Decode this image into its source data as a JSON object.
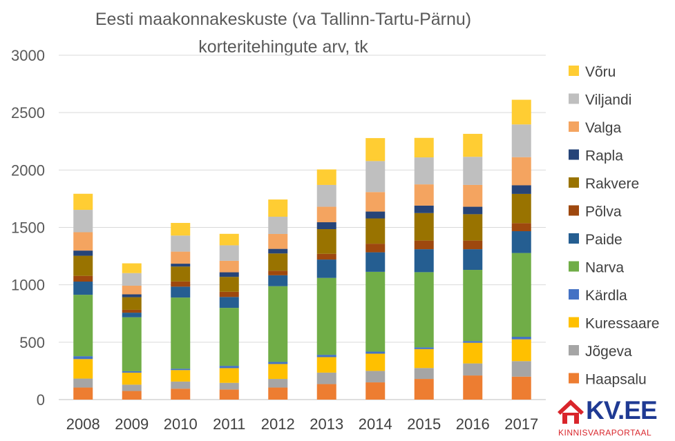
{
  "chart_data": {
    "type": "bar",
    "stacked": true,
    "title": "Eesti maakonnakeskuste (va Tallinn-Tartu-Pärnu) korteritehingute arv, tk",
    "title_lines": [
      "Eesti maakonnakeskuste (va Tallinn-Tartu-Pärnu)",
      "korteritehingute arv, tk"
    ],
    "categories": [
      "2008",
      "2009",
      "2010",
      "2011",
      "2012",
      "2013",
      "2014",
      "2015",
      "2016",
      "2017"
    ],
    "ylim": [
      0,
      3000
    ],
    "yticks": [
      0,
      500,
      1000,
      1500,
      2000,
      2500,
      3000
    ],
    "grid": true,
    "legend_position": "right",
    "series": [
      {
        "name": "Haapsalu",
        "color": "#ED7D31",
        "values": [
          105,
          75,
          95,
          88,
          105,
          135,
          150,
          180,
          210,
          200
        ]
      },
      {
        "name": "Jõgeva",
        "color": "#A5A5A5",
        "values": [
          78,
          55,
          62,
          58,
          75,
          100,
          100,
          95,
          105,
          135
        ]
      },
      {
        "name": "Kuressaare",
        "color": "#FFC000",
        "values": [
          170,
          105,
          100,
          128,
          130,
          135,
          150,
          165,
          180,
          190
        ]
      },
      {
        "name": "Kärdla",
        "color": "#4472C4",
        "values": [
          25,
          12,
          12,
          20,
          18,
          20,
          18,
          15,
          15,
          22
        ]
      },
      {
        "name": "Narva",
        "color": "#70AD47",
        "values": [
          535,
          470,
          620,
          505,
          660,
          670,
          695,
          655,
          620,
          730
        ]
      },
      {
        "name": "Paide",
        "color": "#255E91",
        "values": [
          115,
          40,
          95,
          95,
          95,
          160,
          170,
          200,
          180,
          190
        ]
      },
      {
        "name": "Põlva",
        "color": "#9E480E",
        "values": [
          50,
          25,
          45,
          45,
          40,
          50,
          75,
          75,
          75,
          70
        ]
      },
      {
        "name": "Rakvere",
        "color": "#997300",
        "values": [
          175,
          110,
          130,
          130,
          150,
          215,
          220,
          240,
          230,
          255
        ]
      },
      {
        "name": "Rapla",
        "color": "#264478",
        "values": [
          45,
          25,
          25,
          40,
          40,
          60,
          60,
          65,
          65,
          75
        ]
      },
      {
        "name": "Valga",
        "color": "#F4A460",
        "values": [
          160,
          75,
          105,
          100,
          130,
          135,
          170,
          185,
          190,
          245
        ]
      },
      {
        "name": "Viljandi",
        "color": "#BFBFBF",
        "values": [
          195,
          110,
          140,
          135,
          150,
          190,
          270,
          235,
          245,
          285
        ]
      },
      {
        "name": "Võru",
        "color": "#FFCD33",
        "values": [
          140,
          85,
          110,
          100,
          150,
          135,
          200,
          170,
          200,
          215
        ]
      }
    ]
  },
  "logo": {
    "text": "KV.EE",
    "subtitle": "KINNISVARAPORTAAL",
    "brand_color": "#1f3a93",
    "accent_color": "#d9252b"
  }
}
